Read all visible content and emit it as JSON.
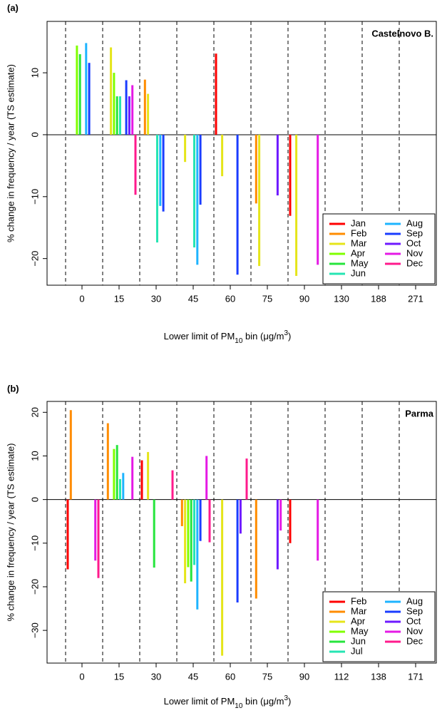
{
  "chart_data": [
    {
      "type": "bar",
      "panel_label": "(a)",
      "annotation": "Castelnovo B.",
      "y_label": "% change in frequency / year (TS estimate)",
      "x_label": [
        "Lower limit of PM",
        "10",
        " bin (μg/m",
        "3",
        ")"
      ],
      "categories": [
        "0",
        "15",
        "30",
        "45",
        "60",
        "75",
        "90",
        "130",
        "188",
        "271"
      ],
      "ylim": [
        -24.3,
        18.3
      ],
      "yticks": [
        {
          "value": -20,
          "label": "−20"
        },
        {
          "value": -10,
          "label": "−10"
        },
        0,
        10
      ],
      "legend": "bottom-right",
      "series": [
        {
          "name": "Jan",
          "color": "#ff0000",
          "values": [
            0,
            0,
            0,
            0,
            13.1,
            0,
            -13.1,
            0,
            0,
            0
          ]
        },
        {
          "name": "Feb",
          "color": "#ff8c00",
          "values": [
            0,
            0,
            8.9,
            0,
            0,
            -11.1,
            0,
            0,
            0,
            0
          ]
        },
        {
          "name": "Mar",
          "color": "#e5e51a",
          "values": [
            0,
            14.1,
            6.6,
            -4.4,
            -6.7,
            -21.2,
            -22.8,
            0,
            0,
            0
          ]
        },
        {
          "name": "Apr",
          "color": "#80ff00",
          "values": [
            14.4,
            10,
            0,
            0,
            0,
            0,
            0,
            0,
            0,
            0
          ]
        },
        {
          "name": "May",
          "color": "#26e53c",
          "values": [
            13,
            6.2,
            0,
            0,
            0,
            0,
            0,
            0,
            0,
            0
          ]
        },
        {
          "name": "Jun",
          "color": "#26e5b3",
          "values": [
            0,
            6.2,
            -17.4,
            -18.2,
            0,
            0,
            0,
            0,
            0,
            0
          ]
        },
        {
          "name": "Aug",
          "color": "#1eb4ff",
          "values": [
            14.8,
            0,
            -11.5,
            -21,
            0,
            0,
            0,
            0,
            0,
            0
          ]
        },
        {
          "name": "Sep",
          "color": "#1a3cff",
          "values": [
            11.6,
            8.8,
            -12.4,
            -11.3,
            -22.6,
            0,
            0,
            0,
            0,
            0
          ]
        },
        {
          "name": "Oct",
          "color": "#6e1aff",
          "values": [
            0,
            6.2,
            0,
            0,
            0,
            -9.8,
            0,
            0,
            0,
            0
          ]
        },
        {
          "name": "Nov",
          "color": "#e51ae5",
          "values": [
            0,
            8,
            0,
            0,
            0,
            0,
            -21,
            0,
            0,
            0
          ]
        },
        {
          "name": "Dec",
          "color": "#ff1a8c",
          "values": [
            0,
            -9.7,
            0,
            0,
            0,
            0,
            0,
            0,
            0,
            0
          ]
        }
      ]
    },
    {
      "type": "bar",
      "panel_label": "(b)",
      "annotation": "Parma",
      "y_label": "% change in frequency / year (TS estimate)",
      "x_label": [
        "Lower limit of PM",
        "10",
        " bin (μg/m",
        "3",
        ")"
      ],
      "categories": [
        "0",
        "15",
        "30",
        "45",
        "60",
        "75",
        "90",
        "112",
        "138",
        "171"
      ],
      "ylim": [
        -37.5,
        22.5
      ],
      "yticks": [
        {
          "value": -30,
          "label": "−30"
        },
        {
          "value": -20,
          "label": "−20"
        },
        {
          "value": -10,
          "label": "−10"
        },
        0,
        10,
        20
      ],
      "legend": "bottom-right",
      "series": [
        {
          "name": "Feb",
          "color": "#ff0000",
          "values": [
            -16,
            0,
            9,
            0,
            0,
            0,
            -10,
            0,
            0,
            0
          ]
        },
        {
          "name": "Mar",
          "color": "#ff8c00",
          "values": [
            20.5,
            17.5,
            0,
            -6.1,
            0,
            -22.7,
            0,
            0,
            0,
            0
          ]
        },
        {
          "name": "Apr",
          "color": "#e5e51a",
          "values": [
            0,
            0,
            10.9,
            -19.2,
            -35.8,
            0,
            0,
            0,
            0,
            0
          ]
        },
        {
          "name": "May",
          "color": "#80ff00",
          "values": [
            0,
            11.6,
            0,
            -15.5,
            0,
            0,
            0,
            0,
            0,
            0
          ]
        },
        {
          "name": "Jun",
          "color": "#26e53c",
          "values": [
            0,
            12.5,
            -15.6,
            -18.8,
            0,
            0,
            0,
            0,
            0,
            0
          ]
        },
        {
          "name": "Jul",
          "color": "#26e5b3",
          "values": [
            0,
            4.7,
            0,
            -15,
            0,
            0,
            0,
            0,
            0,
            0
          ]
        },
        {
          "name": "Aug",
          "color": "#1eb4ff",
          "values": [
            0,
            6.1,
            0,
            -25.2,
            0,
            0,
            0,
            0,
            0,
            0
          ]
        },
        {
          "name": "Sep",
          "color": "#1a3cff",
          "values": [
            0,
            0,
            0,
            -9.5,
            -23.6,
            0,
            0,
            0,
            0,
            0
          ]
        },
        {
          "name": "Oct",
          "color": "#6e1aff",
          "values": [
            0,
            0,
            0,
            0,
            -7.8,
            -16,
            0,
            0,
            0,
            0
          ]
        },
        {
          "name": "Nov",
          "color": "#e51ae5",
          "values": [
            -14,
            9.8,
            0,
            10,
            0,
            -7.1,
            -14,
            0,
            0,
            0
          ]
        },
        {
          "name": "Dec",
          "color": "#ff1a8c",
          "values": [
            -18,
            0,
            6.7,
            -9.8,
            9.4,
            0,
            0,
            0,
            0,
            0
          ]
        }
      ]
    }
  ]
}
